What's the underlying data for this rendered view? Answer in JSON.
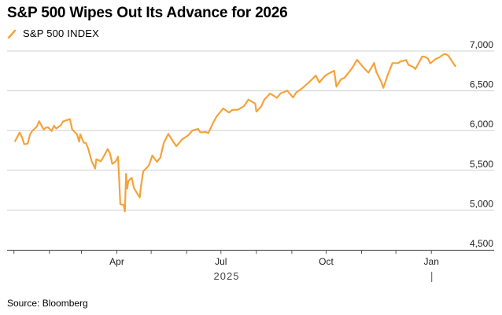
{
  "title": "S&P 500 Wipes Out Its Advance for 2026",
  "source": "Source: Bloomberg",
  "chart_data": {
    "type": "line",
    "title": "S&P 500 Wipes Out Its Advance for 2026",
    "legend": "top-left",
    "series": [
      {
        "name": "S&P 500 INDEX",
        "color": "#f5a33a",
        "points": [
          [
            "2025-01-02",
            5868
          ],
          [
            "2025-01-06",
            5975
          ],
          [
            "2025-01-08",
            5918
          ],
          [
            "2025-01-10",
            5827
          ],
          [
            "2025-01-13",
            5836
          ],
          [
            "2025-01-15",
            5949
          ],
          [
            "2025-01-17",
            5997
          ],
          [
            "2025-01-21",
            6049
          ],
          [
            "2025-01-23",
            6118
          ],
          [
            "2025-01-27",
            6012
          ],
          [
            "2025-01-29",
            6039
          ],
          [
            "2025-01-31",
            6040
          ],
          [
            "2025-02-03",
            5994
          ],
          [
            "2025-02-05",
            6061
          ],
          [
            "2025-02-07",
            6025
          ],
          [
            "2025-02-11",
            6068
          ],
          [
            "2025-02-13",
            6115
          ],
          [
            "2025-02-19",
            6144
          ],
          [
            "2025-02-21",
            6013
          ],
          [
            "2025-02-25",
            5955
          ],
          [
            "2025-02-27",
            5861
          ],
          [
            "2025-02-28",
            5954
          ],
          [
            "2025-03-03",
            5849
          ],
          [
            "2025-03-05",
            5842
          ],
          [
            "2025-03-07",
            5770
          ],
          [
            "2025-03-10",
            5614
          ],
          [
            "2025-03-13",
            5522
          ],
          [
            "2025-03-14",
            5639
          ],
          [
            "2025-03-18",
            5615
          ],
          [
            "2025-03-20",
            5662
          ],
          [
            "2025-03-24",
            5768
          ],
          [
            "2025-03-26",
            5712
          ],
          [
            "2025-03-28",
            5581
          ],
          [
            "2025-03-31",
            5612
          ],
          [
            "2025-04-02",
            5671
          ],
          [
            "2025-04-03",
            5396
          ],
          [
            "2025-04-04",
            5074
          ],
          [
            "2025-04-07",
            5062
          ],
          [
            "2025-04-08",
            4983
          ],
          [
            "2025-04-09",
            5457
          ],
          [
            "2025-04-10",
            5268
          ],
          [
            "2025-04-11",
            5363
          ],
          [
            "2025-04-14",
            5406
          ],
          [
            "2025-04-16",
            5275
          ],
          [
            "2025-04-21",
            5158
          ],
          [
            "2025-04-22",
            5288
          ],
          [
            "2025-04-24",
            5485
          ],
          [
            "2025-04-29",
            5561
          ],
          [
            "2025-05-02",
            5686
          ],
          [
            "2025-05-06",
            5607
          ],
          [
            "2025-05-09",
            5660
          ],
          [
            "2025-05-12",
            5844
          ],
          [
            "2025-05-16",
            5958
          ],
          [
            "2025-05-21",
            5845
          ],
          [
            "2025-05-23",
            5802
          ],
          [
            "2025-05-28",
            5889
          ],
          [
            "2025-06-02",
            5936
          ],
          [
            "2025-06-06",
            6000
          ],
          [
            "2025-06-11",
            6022
          ],
          [
            "2025-06-13",
            5977
          ],
          [
            "2025-06-18",
            5981
          ],
          [
            "2025-06-20",
            5967
          ],
          [
            "2025-06-24",
            6092
          ],
          [
            "2025-06-27",
            6173
          ],
          [
            "2025-07-03",
            6279
          ],
          [
            "2025-07-08",
            6226
          ],
          [
            "2025-07-11",
            6260
          ],
          [
            "2025-07-16",
            6263
          ],
          [
            "2025-07-21",
            6305
          ],
          [
            "2025-07-25",
            6389
          ],
          [
            "2025-07-31",
            6339
          ],
          [
            "2025-08-01",
            6238
          ],
          [
            "2025-08-05",
            6299
          ],
          [
            "2025-08-08",
            6389
          ],
          [
            "2025-08-13",
            6466
          ],
          [
            "2025-08-19",
            6411
          ],
          [
            "2025-08-22",
            6466
          ],
          [
            "2025-08-28",
            6502
          ],
          [
            "2025-09-02",
            6416
          ],
          [
            "2025-09-05",
            6481
          ],
          [
            "2025-09-10",
            6532
          ],
          [
            "2025-09-16",
            6607
          ],
          [
            "2025-09-22",
            6693
          ],
          [
            "2025-09-25",
            6605
          ],
          [
            "2025-09-30",
            6688
          ],
          [
            "2025-10-03",
            6715
          ],
          [
            "2025-10-08",
            6753
          ],
          [
            "2025-10-10",
            6552
          ],
          [
            "2025-10-14",
            6644
          ],
          [
            "2025-10-17",
            6664
          ],
          [
            "2025-10-21",
            6735
          ],
          [
            "2025-10-24",
            6791
          ],
          [
            "2025-10-28",
            6890
          ],
          [
            "2025-10-31",
            6840
          ],
          [
            "2025-11-04",
            6771
          ],
          [
            "2025-11-07",
            6728
          ],
          [
            "2025-11-12",
            6850
          ],
          [
            "2025-11-14",
            6734
          ],
          [
            "2025-11-18",
            6617
          ],
          [
            "2025-11-20",
            6538
          ],
          [
            "2025-11-24",
            6705
          ],
          [
            "2025-11-28",
            6849
          ],
          [
            "2025-12-03",
            6849
          ],
          [
            "2025-12-05",
            6870
          ],
          [
            "2025-12-10",
            6886
          ],
          [
            "2025-12-12",
            6827
          ],
          [
            "2025-12-16",
            6800
          ],
          [
            "2025-12-18",
            6774
          ],
          [
            "2025-12-22",
            6878
          ],
          [
            "2025-12-24",
            6932
          ],
          [
            "2025-12-26",
            6929
          ],
          [
            "2025-12-29",
            6905
          ],
          [
            "2025-12-31",
            6845
          ],
          [
            "2026-01-05",
            6902
          ],
          [
            "2026-01-08",
            6921
          ],
          [
            "2026-01-12",
            6960
          ],
          [
            "2026-01-14",
            6960
          ],
          [
            "2026-01-16",
            6940
          ],
          [
            "2026-01-20",
            6850
          ],
          [
            "2026-01-22",
            6810
          ]
        ]
      }
    ],
    "x_range": [
      "2024-12-26",
      "2026-01-27"
    ],
    "ylim": [
      4500,
      7000
    ],
    "y_ticks": [
      4500,
      5000,
      5500,
      6000,
      6500,
      7000
    ],
    "y_tick_labels": [
      "4,500",
      "5,000",
      "5,500",
      "6,000",
      "6,500",
      "7,000"
    ],
    "x_month_ticks": [
      "2025-01-01",
      "2025-02-01",
      "2025-03-01",
      "2025-04-01",
      "2025-05-01",
      "2025-06-01",
      "2025-07-01",
      "2025-08-01",
      "2025-09-01",
      "2025-10-01",
      "2025-11-01",
      "2025-12-01",
      "2026-01-01"
    ],
    "x_labels": [
      {
        "date": "2025-04-01",
        "label": "Apr"
      },
      {
        "date": "2025-07-01",
        "label": "Jul"
      },
      {
        "date": "2025-10-01",
        "label": "Oct"
      },
      {
        "date": "2026-01-01",
        "label": "Jan"
      }
    ],
    "x_group_label": "2025",
    "x_group_divider": "2026-01-01",
    "gridlines": true
  }
}
